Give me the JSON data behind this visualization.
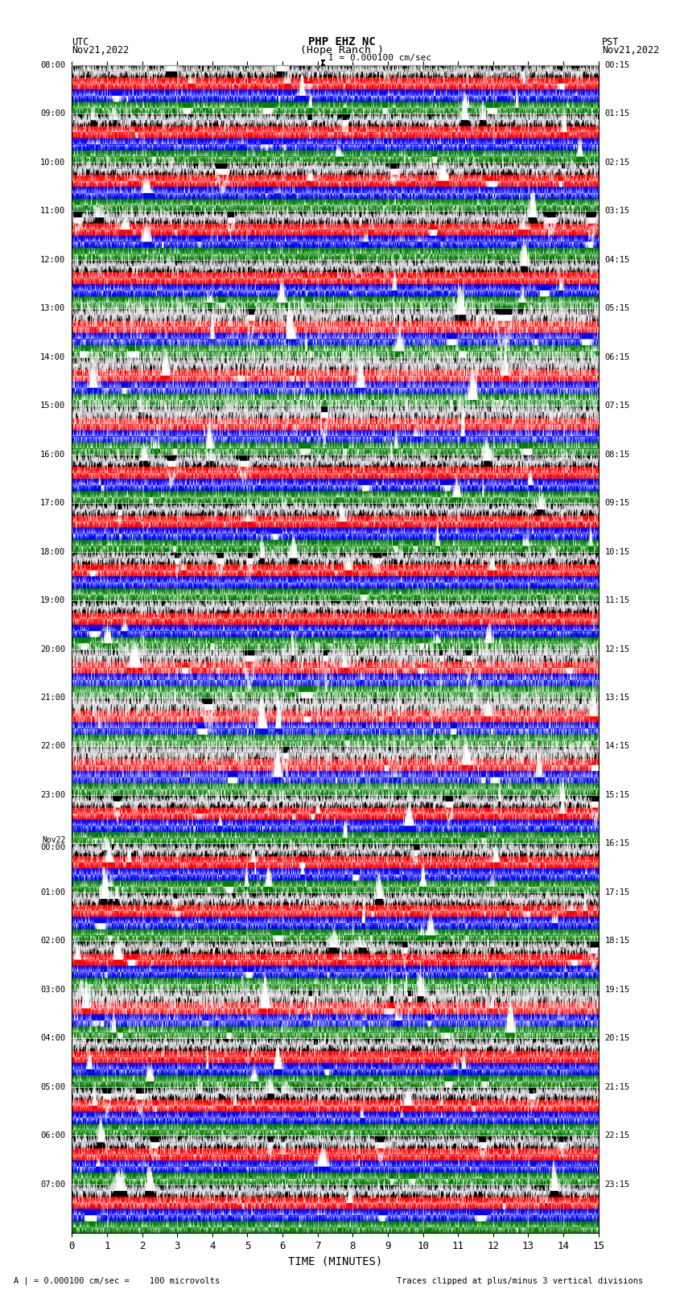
{
  "title_line1": "PHP EHZ NC",
  "title_line2": "(Hope Ranch )",
  "title_line3": "I = 0.000100 cm/sec",
  "left_header_line1": "UTC",
  "left_header_line2": "Nov21,2022",
  "right_header_line1": "PST",
  "right_header_line2": "Nov21,2022",
  "utc_times": [
    "08:00",
    "09:00",
    "10:00",
    "11:00",
    "12:00",
    "13:00",
    "14:00",
    "15:00",
    "16:00",
    "17:00",
    "18:00",
    "19:00",
    "20:00",
    "21:00",
    "22:00",
    "23:00",
    "Nov22\n00:00",
    "01:00",
    "02:00",
    "03:00",
    "04:00",
    "05:00",
    "06:00",
    "07:00"
  ],
  "pst_times": [
    "00:15",
    "01:15",
    "02:15",
    "03:15",
    "04:15",
    "05:15",
    "06:15",
    "07:15",
    "08:15",
    "09:15",
    "10:15",
    "11:15",
    "12:15",
    "13:15",
    "14:15",
    "15:15",
    "16:15",
    "17:15",
    "18:15",
    "19:15",
    "20:15",
    "21:15",
    "22:15",
    "23:15"
  ],
  "xlabel": "TIME (MINUTES)",
  "xmin": 0,
  "xmax": 15,
  "xticks": [
    0,
    1,
    2,
    3,
    4,
    5,
    6,
    7,
    8,
    9,
    10,
    11,
    12,
    13,
    14,
    15
  ],
  "bottom_note_left": "A | = 0.000100 cm/sec =    100 microvolts",
  "bottom_note_right": "Traces clipped at plus/minus 3 vertical divisions",
  "band_colors": [
    "black",
    "red",
    "blue",
    "green"
  ],
  "n_utc_rows": 24,
  "bands_per_row": 4,
  "fig_width": 8.5,
  "fig_height": 16.13,
  "bg_color": "white",
  "seed": 42,
  "n_points": 3000,
  "base_amplitude": 0.25,
  "high_activity_rows": [
    5,
    6,
    7,
    12,
    13,
    14,
    19
  ],
  "high_amplitude": 1.5
}
